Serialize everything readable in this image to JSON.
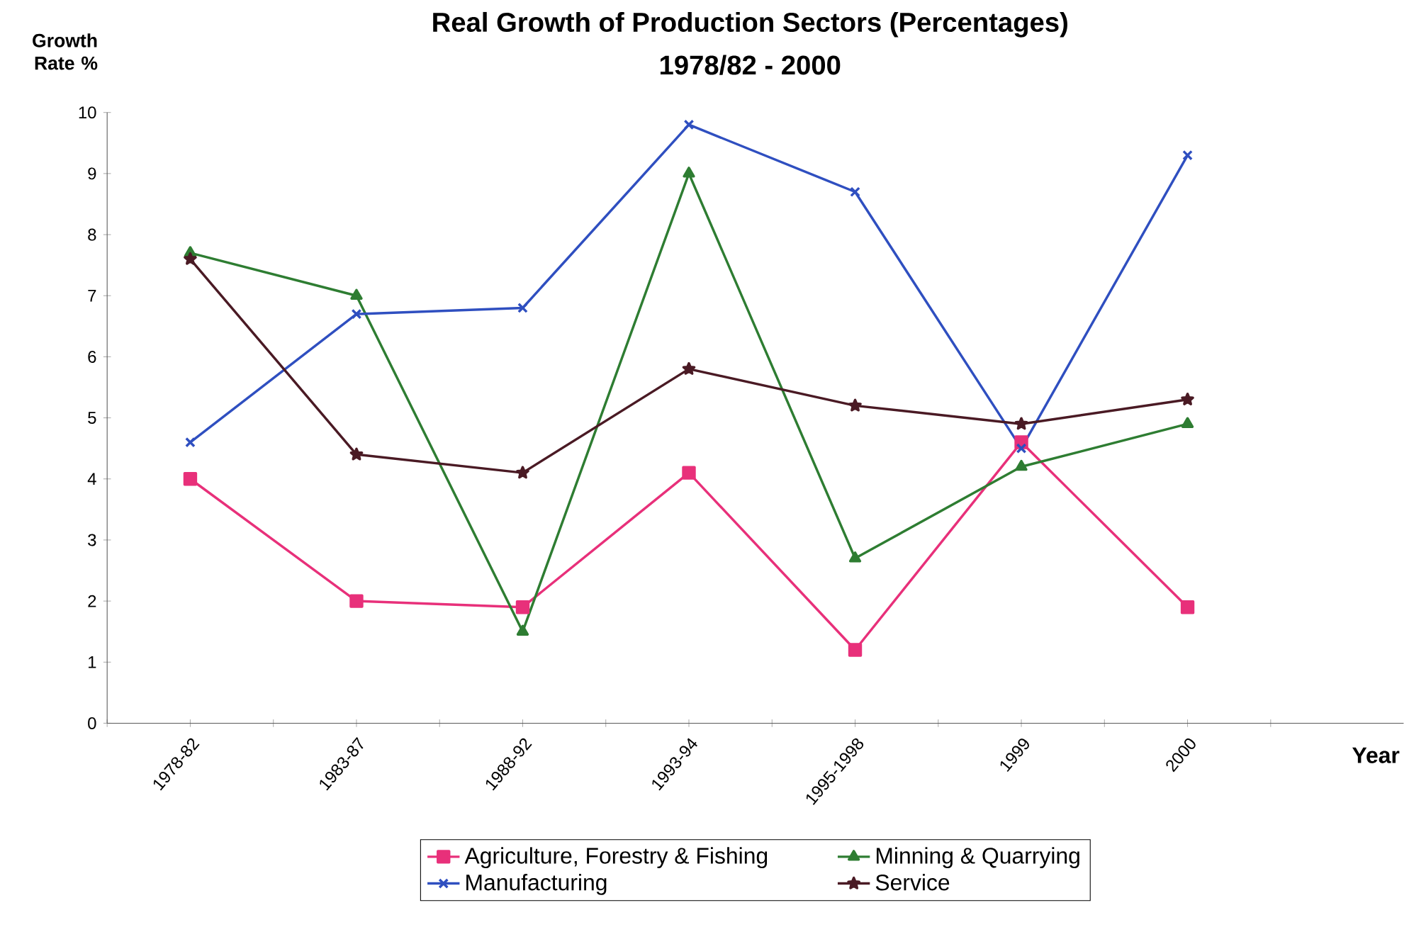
{
  "chart_data": {
    "type": "line",
    "title": "Real Growth of Production Sectors (Percentages)",
    "subtitle": "1978/82 - 2000",
    "ylabel": "Growth Rate %",
    "xlabel": "Year",
    "categories": [
      "1978-82",
      "1983-87",
      "1988-92",
      "1993-94",
      "1995-1998",
      "1999",
      "2000"
    ],
    "ylim": [
      0,
      10
    ],
    "yticks": [
      0,
      1,
      2,
      3,
      4,
      5,
      6,
      7,
      8,
      9,
      10
    ],
    "grid": false,
    "legend": "bottom",
    "series": [
      {
        "name": "Agriculture, Forestry & Fishing",
        "color": "#e8307a",
        "marker": "square",
        "values": [
          4.0,
          2.0,
          1.9,
          4.1,
          1.2,
          4.6,
          1.9
        ]
      },
      {
        "name": "Minning & Quarrying",
        "color": "#2e7d32",
        "marker": "triangle",
        "values": [
          7.7,
          7.0,
          1.5,
          9.0,
          2.7,
          4.2,
          4.9
        ]
      },
      {
        "name": "Manufacturing",
        "color": "#2f4fc0",
        "marker": "cross",
        "values": [
          4.6,
          6.7,
          6.8,
          9.8,
          8.7,
          4.5,
          9.3
        ]
      },
      {
        "name": "Service",
        "color": "#4a1a24",
        "marker": "star",
        "values": [
          7.6,
          4.4,
          4.1,
          5.8,
          5.2,
          4.9,
          5.3
        ]
      }
    ]
  }
}
